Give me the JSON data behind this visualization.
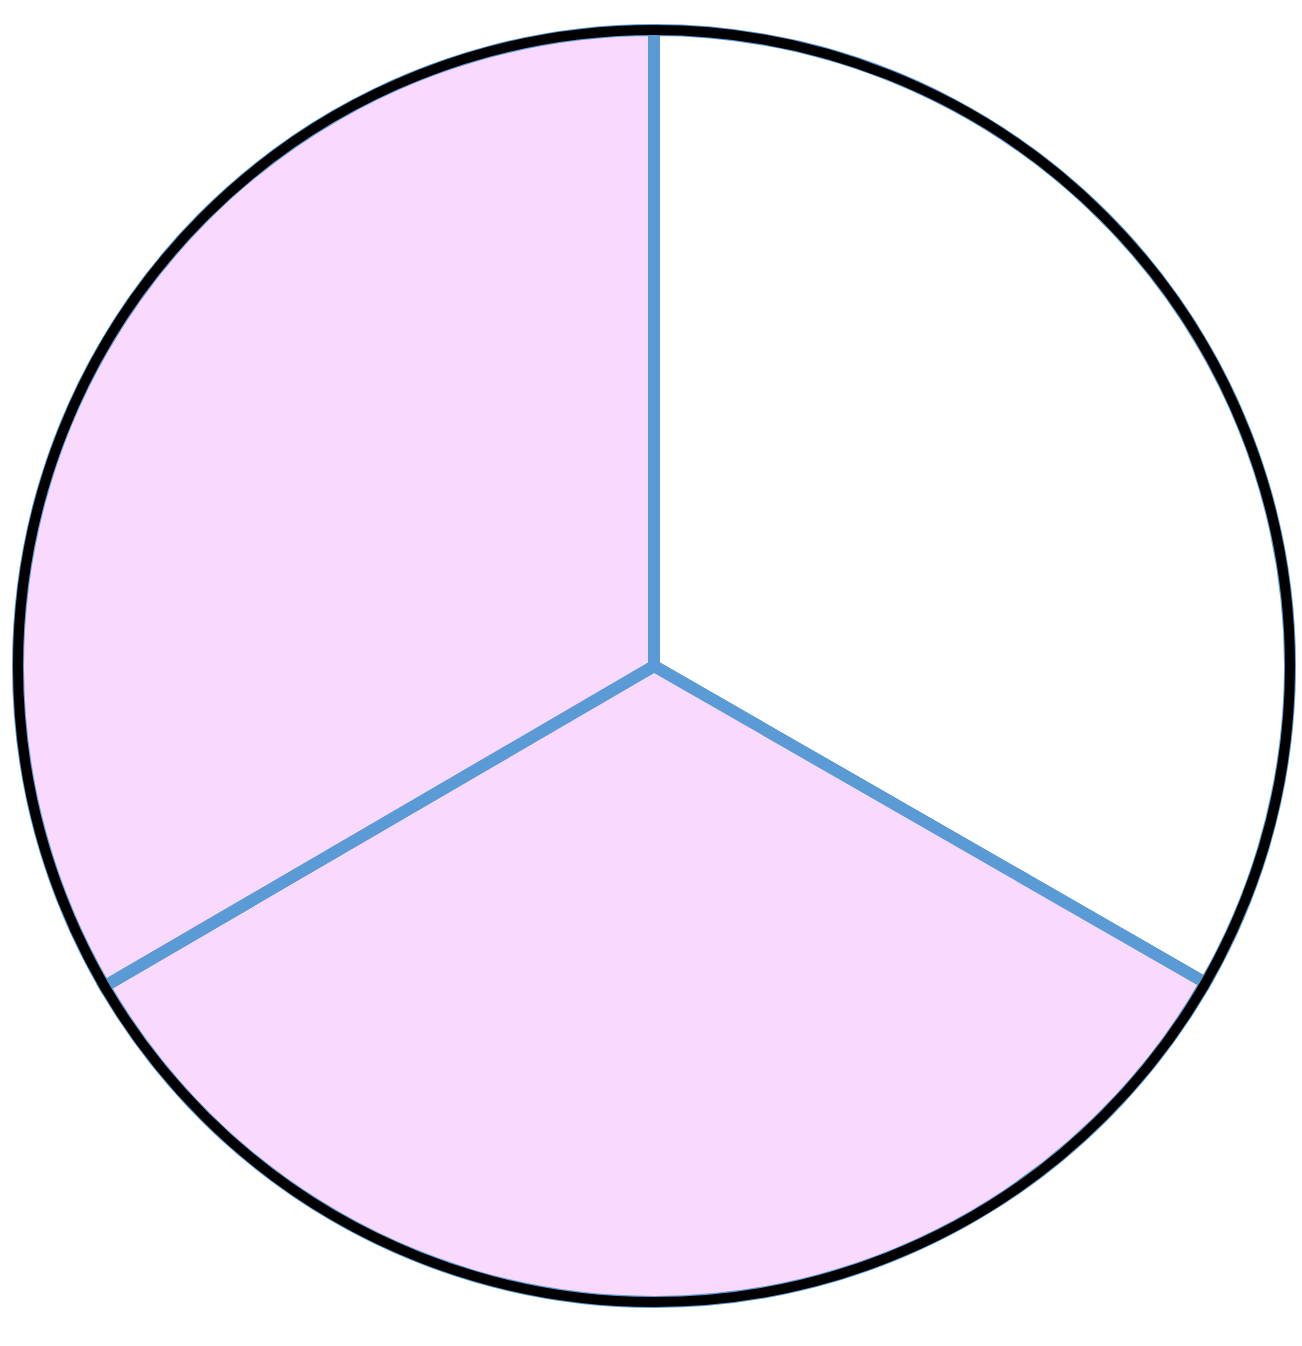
{
  "chart_data": {
    "type": "pie",
    "categories": [
      null,
      null,
      null
    ],
    "values": [
      33.3,
      33.3,
      33.4
    ],
    "colors": [
      "#ffffff",
      "#fad9ff",
      "#fad9ff"
    ]
  }
}
